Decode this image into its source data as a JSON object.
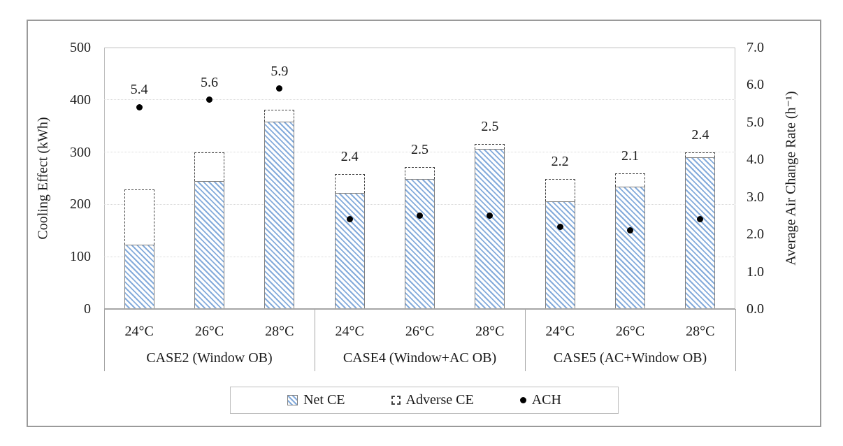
{
  "chart_data": {
    "type": "bar",
    "subtype": "stacked-bar-with-scatter-dots",
    "title": "",
    "left_axis": {
      "label": "Cooling Effect (kWh)",
      "min": 0,
      "max": 500,
      "step": 100,
      "tick_labels": [
        "0",
        "100",
        "200",
        "300",
        "400",
        "500"
      ]
    },
    "right_axis": {
      "label": "Average Air Change Rate (h⁻¹)",
      "min": 0.0,
      "max": 7.0,
      "step": 1.0,
      "tick_labels": [
        "0.0",
        "1.0",
        "2.0",
        "3.0",
        "4.0",
        "5.0",
        "6.0",
        "7.0"
      ]
    },
    "grid": "horizontal-dotted",
    "legend_position": "bottom",
    "groups": [
      {
        "label": "CASE2 (Window OB)",
        "points": [
          {
            "temp": "24°C",
            "net_ce": 123,
            "adverse_ce": 105,
            "ach": 5.4,
            "ach_label": "5.4"
          },
          {
            "temp": "26°C",
            "net_ce": 244,
            "adverse_ce": 56,
            "ach": 5.6,
            "ach_label": "5.6"
          },
          {
            "temp": "28°C",
            "net_ce": 358,
            "adverse_ce": 23,
            "ach": 5.9,
            "ach_label": "5.9"
          }
        ]
      },
      {
        "label": "CASE4 (Window+AC OB)",
        "points": [
          {
            "temp": "24°C",
            "net_ce": 222,
            "adverse_ce": 36,
            "ach": 2.4,
            "ach_label": "2.4"
          },
          {
            "temp": "26°C",
            "net_ce": 249,
            "adverse_ce": 23,
            "ach": 2.5,
            "ach_label": "2.5"
          },
          {
            "temp": "28°C",
            "net_ce": 306,
            "adverse_ce": 9,
            "ach": 2.5,
            "ach_label": "2.5"
          }
        ]
      },
      {
        "label": "CASE5 (AC+Window OB)",
        "points": [
          {
            "temp": "24°C",
            "net_ce": 206,
            "adverse_ce": 43,
            "ach": 2.2,
            "ach_label": "2.2"
          },
          {
            "temp": "26°C",
            "net_ce": 234,
            "adverse_ce": 25,
            "ach": 2.1,
            "ach_label": "2.1"
          },
          {
            "temp": "28°C",
            "net_ce": 290,
            "adverse_ce": 10,
            "ach": 2.4,
            "ach_label": "2.4"
          }
        ]
      }
    ],
    "legend": [
      {
        "label": "Net CE",
        "swatch": "hatched-bar"
      },
      {
        "label": "Adverse CE",
        "swatch": "dashed-box"
      },
      {
        "label": "ACH",
        "swatch": "dot"
      }
    ],
    "colors": {
      "hatch_stripe": "#84abdb",
      "bar_border": "#7f7f7f",
      "dashed_border": "#404040",
      "dot": "#000000",
      "axis_line": "#bfbfbf",
      "bottom_axis_line": "#a6a6a6",
      "gridline": "#d9d9d9",
      "text": "#1a1a1a"
    }
  }
}
